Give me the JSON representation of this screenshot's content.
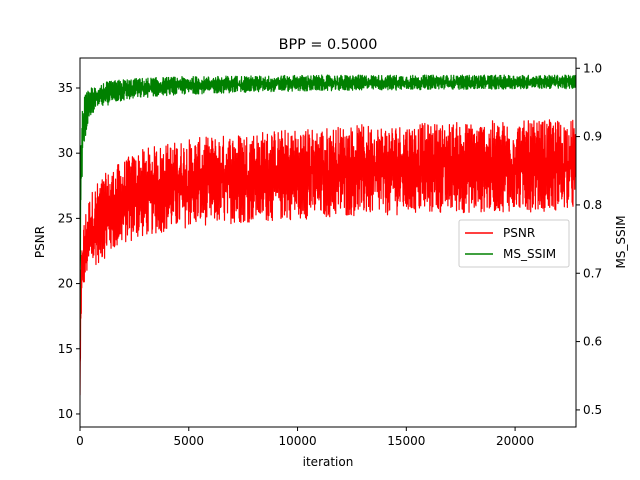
{
  "chart_data": {
    "type": "line",
    "title": "BPP = 0.5000",
    "xlabel": "iteration",
    "ylabel": "PSNR",
    "y2label": "MS_SSIM",
    "xlim": [
      0,
      22800
    ],
    "ylim": [
      9,
      37.3
    ],
    "y2lim": [
      0.475,
      1.015
    ],
    "xticks": [
      0,
      5000,
      10000,
      15000,
      20000
    ],
    "yticks": [
      10,
      15,
      20,
      25,
      30,
      35
    ],
    "y2ticks": [
      0.5,
      0.6,
      0.7,
      0.8,
      0.9,
      1.0
    ],
    "legend_position": "center-right",
    "grid": false,
    "series": [
      {
        "name": "PSNR",
        "axis": "left",
        "color": "#ff0000",
        "x": [
          0,
          50,
          150,
          300,
          500,
          800,
          1200,
          1600,
          2000,
          2500,
          3000,
          4000,
          5000,
          6000,
          7000,
          8000,
          9000,
          10000,
          11000,
          12000,
          13000,
          14000,
          15000,
          16000,
          17000,
          18000,
          19000,
          20000,
          21000,
          22000,
          22800
        ],
        "low": [
          10,
          17,
          19.5,
          20.5,
          21,
          21.5,
          22,
          22.5,
          23,
          23.3,
          23.6,
          24,
          24.3,
          24.5,
          24.6,
          24.7,
          24.8,
          24.9,
          25,
          25.1,
          25.2,
          25.2,
          25.3,
          25.3,
          25.4,
          25.4,
          25.5,
          25.5,
          25.5,
          25.6,
          25.6
        ],
        "high": [
          14,
          22,
          24.5,
          26,
          27,
          27.8,
          28.5,
          29,
          29.5,
          30,
          30.4,
          30.8,
          31.1,
          31.3,
          31.5,
          31.7,
          31.8,
          31.9,
          32,
          32.1,
          32.2,
          32.2,
          32.3,
          32.3,
          32.4,
          32.4,
          32.5,
          32.5,
          32.5,
          32.6,
          32.6
        ]
      },
      {
        "name": "MS_SSIM",
        "axis": "right",
        "color": "#008000",
        "x": [
          0,
          50,
          150,
          300,
          500,
          800,
          1200,
          1600,
          2000,
          2500,
          3000,
          4000,
          5000,
          6000,
          7000,
          8000,
          9000,
          10000,
          11000,
          12000,
          13000,
          14000,
          15000,
          16000,
          17000,
          18000,
          19000,
          20000,
          21000,
          22000,
          22800
        ],
        "low": [
          0.5,
          0.8,
          0.88,
          0.91,
          0.93,
          0.94,
          0.945,
          0.95,
          0.952,
          0.955,
          0.957,
          0.96,
          0.962,
          0.963,
          0.964,
          0.965,
          0.966,
          0.966,
          0.967,
          0.967,
          0.968,
          0.968,
          0.968,
          0.969,
          0.969,
          0.969,
          0.969,
          0.97,
          0.97,
          0.97,
          0.97
        ],
        "high": [
          0.75,
          0.92,
          0.955,
          0.965,
          0.972,
          0.977,
          0.98,
          0.982,
          0.984,
          0.985,
          0.986,
          0.987,
          0.988,
          0.988,
          0.989,
          0.989,
          0.989,
          0.99,
          0.99,
          0.99,
          0.99,
          0.99,
          0.99,
          0.99,
          0.99,
          0.99,
          0.99,
          0.99,
          0.99,
          0.99,
          0.99
        ]
      }
    ]
  }
}
